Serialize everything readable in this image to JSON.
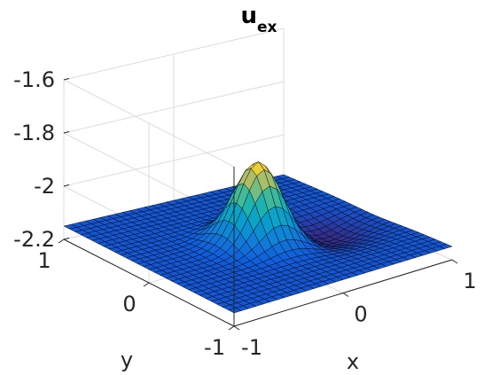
{
  "chart_data": {
    "type": "surface",
    "title": {
      "main": "u",
      "subscript": "ex"
    },
    "xlabel": "x",
    "ylabel": "y",
    "zlabel": "",
    "xlim": [
      -1,
      1
    ],
    "ylim": [
      -1,
      1
    ],
    "zlim": [
      -2.2,
      -1.6
    ],
    "x_ticks": [
      -1,
      0,
      1
    ],
    "y_ticks": [
      -1,
      0,
      1
    ],
    "z_ticks": [
      -2.2,
      -2,
      -1.8,
      -1.6
    ],
    "x_tick_labels": [
      "-1",
      "0",
      "1"
    ],
    "y_tick_labels": [
      "-1",
      "0",
      "1"
    ],
    "z_tick_labels": [
      "-2.2",
      "-2",
      "-1.8",
      "-1.6"
    ],
    "grid": true,
    "colormap": "parula",
    "surface": {
      "function": "u(x,y) = -2.15 + 0.3*exp(-((x^2+y^2)/0.065)) - 0.05*exp(-(((x-0.5)^2+(y+0.1)^2)/0.12))",
      "grid_points": 31,
      "peak": {
        "x": 0,
        "y": 0,
        "z": -1.85
      },
      "base_level": -2.15
    },
    "edge_color": "#000000",
    "colors": {
      "low": "#352a87",
      "mid": "#21b3b3",
      "high": "#f9fb0e"
    }
  }
}
